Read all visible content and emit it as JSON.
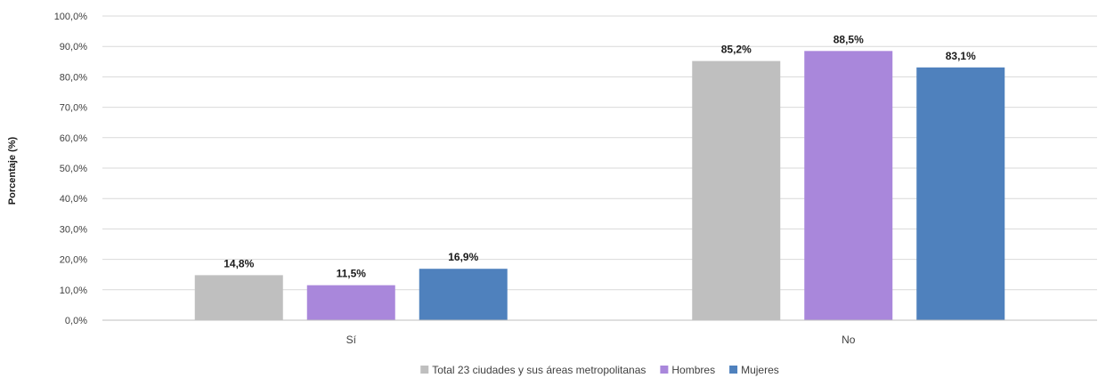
{
  "chart_data": {
    "type": "bar",
    "title": "",
    "xlabel": "",
    "ylabel": "Porcentaje (%)",
    "ylim": [
      0,
      100
    ],
    "yticks": [
      "0,0%",
      "10,0%",
      "20,0%",
      "30,0%",
      "40,0%",
      "50,0%",
      "60,0%",
      "70,0%",
      "80,0%",
      "90,0%",
      "100,0%"
    ],
    "categories": [
      "Sí",
      "No"
    ],
    "grid": true,
    "legend_position": "bottom",
    "series": [
      {
        "name": "Total 23 ciudades y sus áreas metropolitanas",
        "color": "#bfbfbf",
        "values": [
          14.8,
          85.2
        ],
        "labels": [
          "14,8%",
          "85,2%"
        ]
      },
      {
        "name": "Hombres",
        "color": "#a987db",
        "values": [
          11.5,
          88.5
        ],
        "labels": [
          "11,5%",
          "88,5%"
        ]
      },
      {
        "name": "Mujeres",
        "color": "#4f81bd",
        "values": [
          16.9,
          83.1
        ],
        "labels": [
          "16,9%",
          "83,1%"
        ]
      }
    ]
  }
}
